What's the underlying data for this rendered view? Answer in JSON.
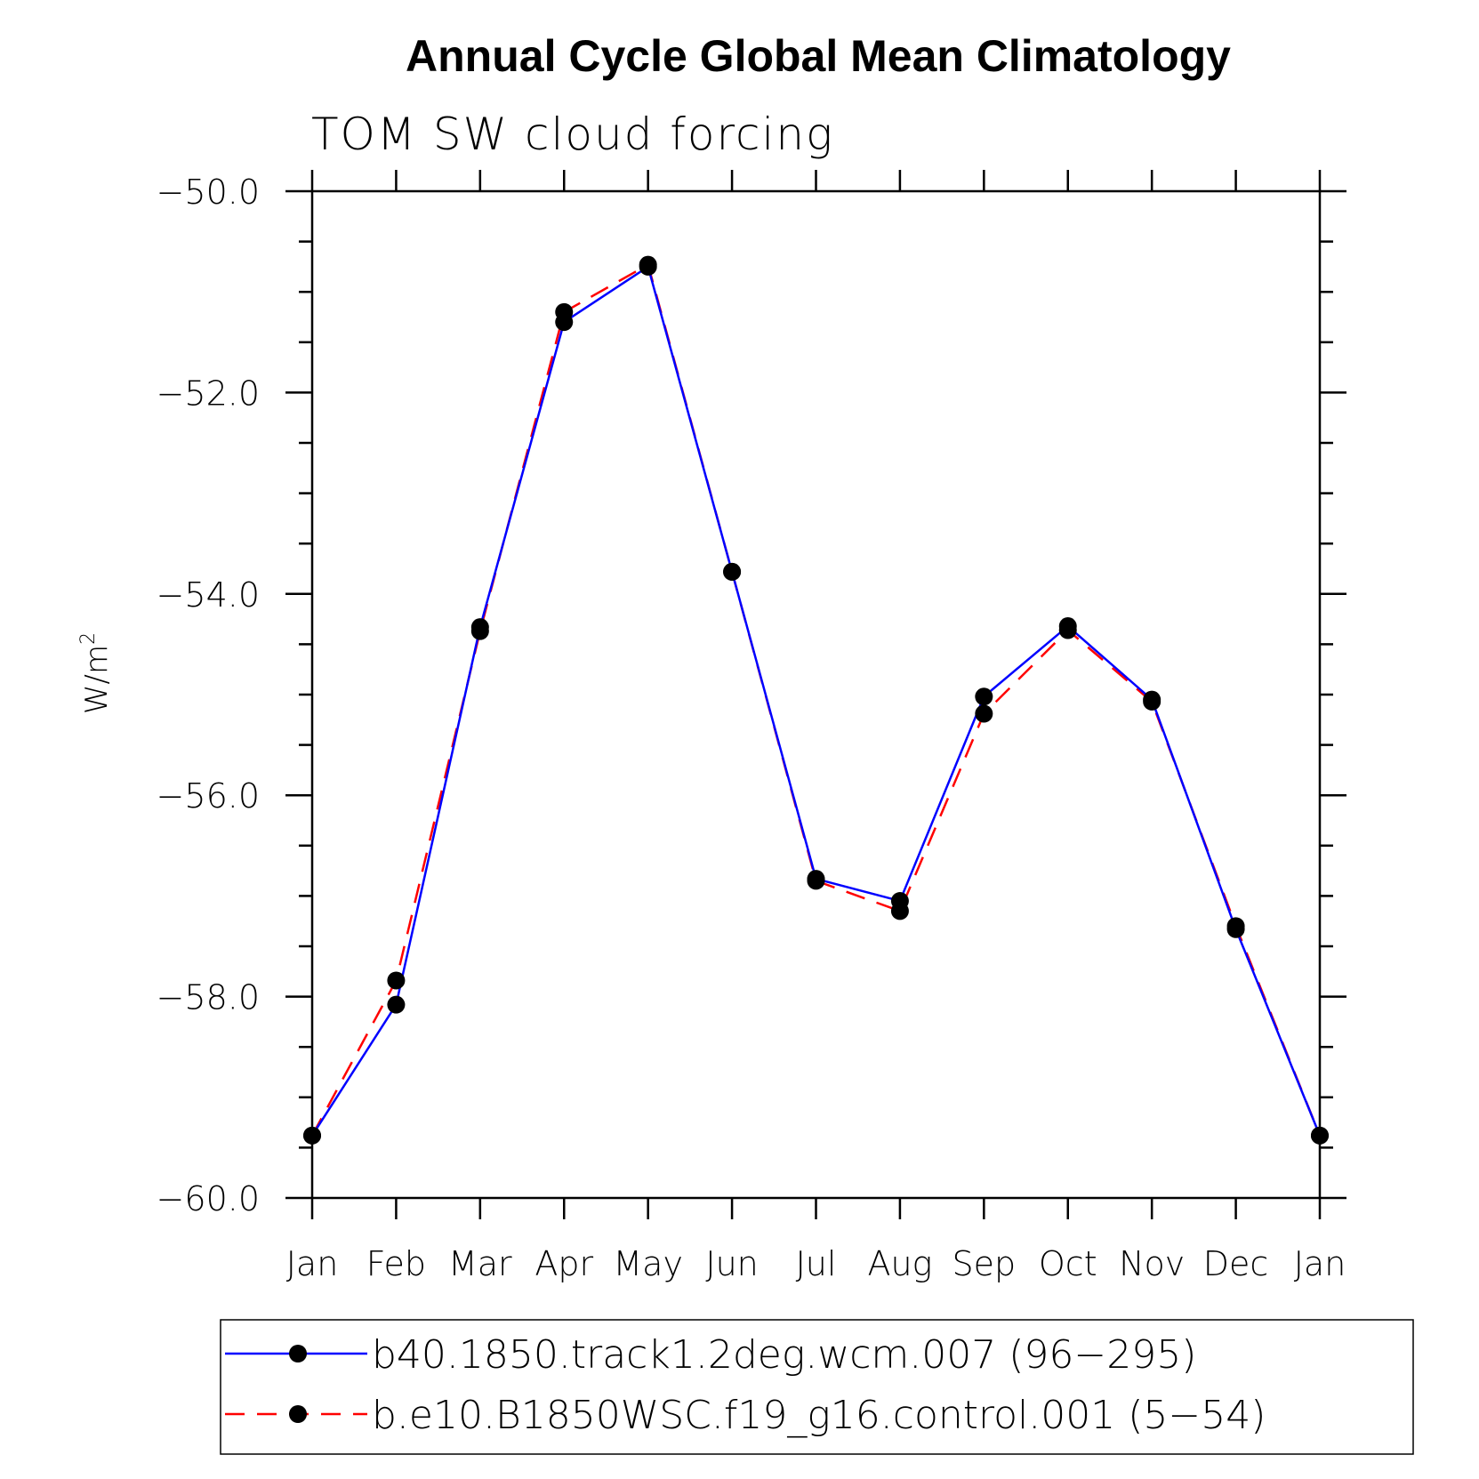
{
  "chart_data": {
    "type": "line",
    "title": "Annual Cycle Global Mean Climatology",
    "subtitle": "TOM SW cloud forcing",
    "ylabel": "W/m",
    "ylabel_sup": "2",
    "xlabel": "",
    "categories": [
      "Jan",
      "Feb",
      "Mar",
      "Apr",
      "May",
      "Jun",
      "Jul",
      "Aug",
      "Sep",
      "Oct",
      "Nov",
      "Dec",
      "Jan"
    ],
    "ylim": [
      -60.0,
      -50.0
    ],
    "yticks": [
      "-60.0",
      "-58.0",
      "-56.0",
      "-54.0",
      "-52.0",
      "-50.0"
    ],
    "series": [
      {
        "name": "b40.1850.track1.2deg.wcm.007 (96-295)",
        "color": "#0000ff",
        "dash": "solid",
        "values": [
          -59.38,
          -58.08,
          -54.33,
          -51.3,
          -50.75,
          -53.78,
          -56.83,
          -57.05,
          -55.02,
          -54.32,
          -55.05,
          -57.33,
          -59.38
        ]
      },
      {
        "name": "b.e10.B1850WSC.f19_g16.control.001 (5-54)",
        "color": "#ff0000",
        "dash": "dashed",
        "values": [
          -59.38,
          -57.84,
          -54.37,
          -51.2,
          -50.73,
          -53.78,
          -56.85,
          -57.15,
          -55.19,
          -54.36,
          -55.07,
          -57.3,
          -59.38
        ]
      }
    ],
    "legend": [
      "b40.1850.track1.2deg.wcm.007 (96−295)",
      "b.e10.B1850WSC.f19_g16.control.001 (5−54)"
    ],
    "marker_color": "#000000"
  }
}
